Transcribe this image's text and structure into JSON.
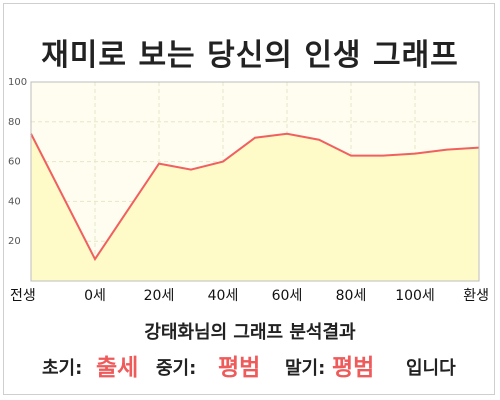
{
  "title": "재미로 보는 당신의 인생 그래프",
  "colors": {
    "line": "#f06060",
    "fill": "#fffbc8",
    "grid": "#e6e6c8",
    "accent": "#ef5a5a"
  },
  "chart_data": {
    "type": "area",
    "title": "재미로 보는 당신의 인생 그래프",
    "xlabel": "",
    "ylabel": "",
    "ylim": [
      0,
      100
    ],
    "y_ticks": [
      20,
      40,
      60,
      80,
      100
    ],
    "x_ticks": [
      "전생",
      "0세",
      "20세",
      "40세",
      "60세",
      "80세",
      "100세",
      "환생"
    ],
    "grid": true,
    "legend": "none",
    "x": [
      -1,
      0,
      1,
      1.5,
      2,
      2.5,
      3,
      3.5,
      4,
      4.5,
      5,
      5.5,
      6
    ],
    "values": [
      74,
      11,
      59,
      56,
      60,
      72,
      74,
      71,
      63,
      63,
      64,
      66,
      67
    ]
  },
  "result": {
    "heading": "강태화님의 그래프 분석결과",
    "early_label": "초기:",
    "early_value": "출세",
    "mid_label": "중기:",
    "mid_value": "평범",
    "late_label": "말기:",
    "late_value": "평범",
    "ending": "입니다"
  }
}
